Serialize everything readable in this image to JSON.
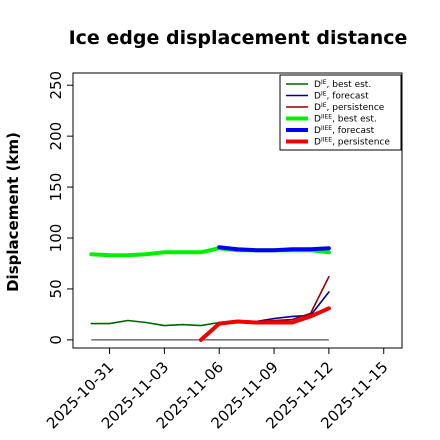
{
  "chart_data": {
    "type": "line",
    "title": "Ice edge displacement distance",
    "xlabel": "",
    "ylabel": "Displacement (km)",
    "x_start": "2025-10-29",
    "xlim": [
      "2025-10-29",
      "2025-11-16"
    ],
    "ylim": [
      -8,
      262
    ],
    "yticks": [
      0,
      50,
      100,
      150,
      200,
      250
    ],
    "xticks": [
      "2025-10-31",
      "2025-11-03",
      "2025-11-06",
      "2025-11-09",
      "2025-11-12",
      "2025-11-15"
    ],
    "highlight_tick": "2025-11-06",
    "highlight_color": "#228B22",
    "grid": false,
    "legend_placement": "top-right",
    "legend": [
      {
        "series": 0,
        "sup": "IE",
        "label": "best est."
      },
      {
        "series": 1,
        "sup": "IE",
        "label": "forecast"
      },
      {
        "series": 2,
        "sup": "IE",
        "label": "persistence"
      },
      {
        "series": 3,
        "sup": "IIEE",
        "label": "best est."
      },
      {
        "series": 4,
        "sup": "IIEE",
        "label": "forecast"
      },
      {
        "series": 5,
        "sup": "IIEE",
        "label": "persistence"
      }
    ],
    "legend_prefix": "D",
    "series": [
      {
        "color": "#006400",
        "thick": false,
        "x": [
          "2025-10-30",
          "2025-10-31",
          "2025-11-01",
          "2025-11-02",
          "2025-11-03",
          "2025-11-04",
          "2025-11-05",
          "2025-11-06"
        ],
        "y": [
          16,
          16,
          19,
          17,
          14,
          15,
          14,
          17
        ]
      },
      {
        "color": "#00008B",
        "thick": false,
        "x": [
          "2025-11-06",
          "2025-11-07",
          "2025-11-08",
          "2025-11-09",
          "2025-11-10",
          "2025-11-11",
          "2025-11-12"
        ],
        "y": [
          17,
          18,
          18,
          21,
          23,
          24,
          47
        ]
      },
      {
        "color": "#8B0000",
        "thick": false,
        "x": [
          "2025-11-06",
          "2025-11-07",
          "2025-11-08",
          "2025-11-09",
          "2025-11-10",
          "2025-11-11",
          "2025-11-12"
        ],
        "y": [
          17,
          19,
          18,
          19,
          20,
          26,
          62
        ]
      },
      {
        "color": "#00EE00",
        "thick": true,
        "x": [
          "2025-10-30",
          "2025-10-31",
          "2025-11-01",
          "2025-11-02",
          "2025-11-03",
          "2025-11-04",
          "2025-11-05",
          "2025-11-06",
          "2025-11-07",
          "2025-11-08",
          "2025-11-09",
          "2025-11-10",
          "2025-11-11",
          "2025-11-12"
        ],
        "y": [
          84,
          83,
          83,
          84,
          86,
          86,
          86,
          90,
          88,
          88,
          88,
          88,
          88,
          86
        ]
      },
      {
        "color": "#0000EE",
        "thick": true,
        "x": [
          "2025-11-06",
          "2025-11-07",
          "2025-11-08",
          "2025-11-09",
          "2025-11-10",
          "2025-11-11",
          "2025-11-12"
        ],
        "y": [
          91,
          89,
          88,
          88,
          89,
          89,
          90
        ]
      },
      {
        "color": "#EE0000",
        "thick": true,
        "x": [
          "2025-11-05",
          "2025-11-06",
          "2025-11-07",
          "2025-11-08",
          "2025-11-09",
          "2025-11-10",
          "2025-11-11",
          "2025-11-12"
        ],
        "y": [
          0,
          16,
          18,
          17,
          17,
          17,
          23,
          31
        ]
      }
    ],
    "reference_line": {
      "y": 0,
      "x": [
        "2025-10-30",
        "2025-11-12"
      ],
      "color": "#555555"
    }
  }
}
